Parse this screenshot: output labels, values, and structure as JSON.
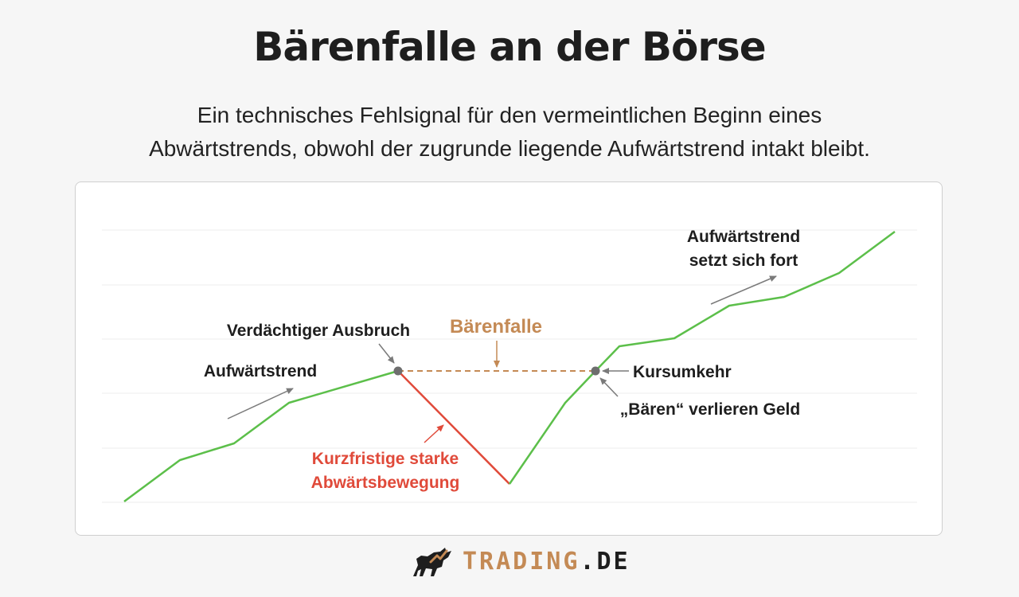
{
  "title": "Bärenfalle an der Börse",
  "subtitle_line1": "Ein technisches Fehlsignal für den vermeintlichen Beginn eines",
  "subtitle_line2": "Abwärtstrends, obwohl der zugrunde liegende Aufwärtstrend intakt bleibt.",
  "colors": {
    "uptrend": "#5cbf4a",
    "downmove": "#e04a3a",
    "trap": "#c48a55",
    "text": "#1e1e1e",
    "arrow": "#7a7a7a",
    "dot": "#6e6e6e",
    "grid": "#ececec"
  },
  "labels": {
    "uptrend": "Aufwärtstrend",
    "suspicious_breakout": "Verdächtiger Ausbruch",
    "bear_trap": "Bärenfalle",
    "reversal": "Kursumkehr",
    "bears_lose": "„Bären“ verlieren Geld",
    "down_move_line1": "Kurzfristige starke",
    "down_move_line2": "Abwärtsbewegung",
    "continues_line1": "Aufwärtstrend",
    "continues_line2": "setzt sich fort"
  },
  "footer": {
    "brand_main": "TRADING",
    "brand_tld": ".DE",
    "logo_icon": "bull-icon"
  }
}
